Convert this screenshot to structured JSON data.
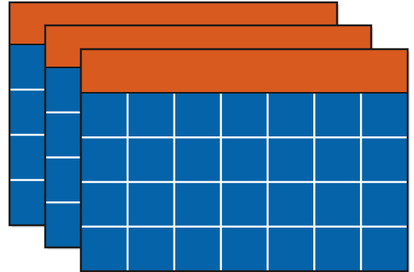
{
  "illustration": {
    "subject": "stacked-calendars-icon",
    "sheet_count": 3,
    "grid": {
      "columns": 7,
      "rows": 4
    },
    "colors": {
      "header": "#d95a1f",
      "body": "#0563a9",
      "grid_lines": "#ffffff",
      "outline": "#1a1a1a",
      "shadow": "#c9c9c9",
      "background": "#ffffff"
    }
  }
}
